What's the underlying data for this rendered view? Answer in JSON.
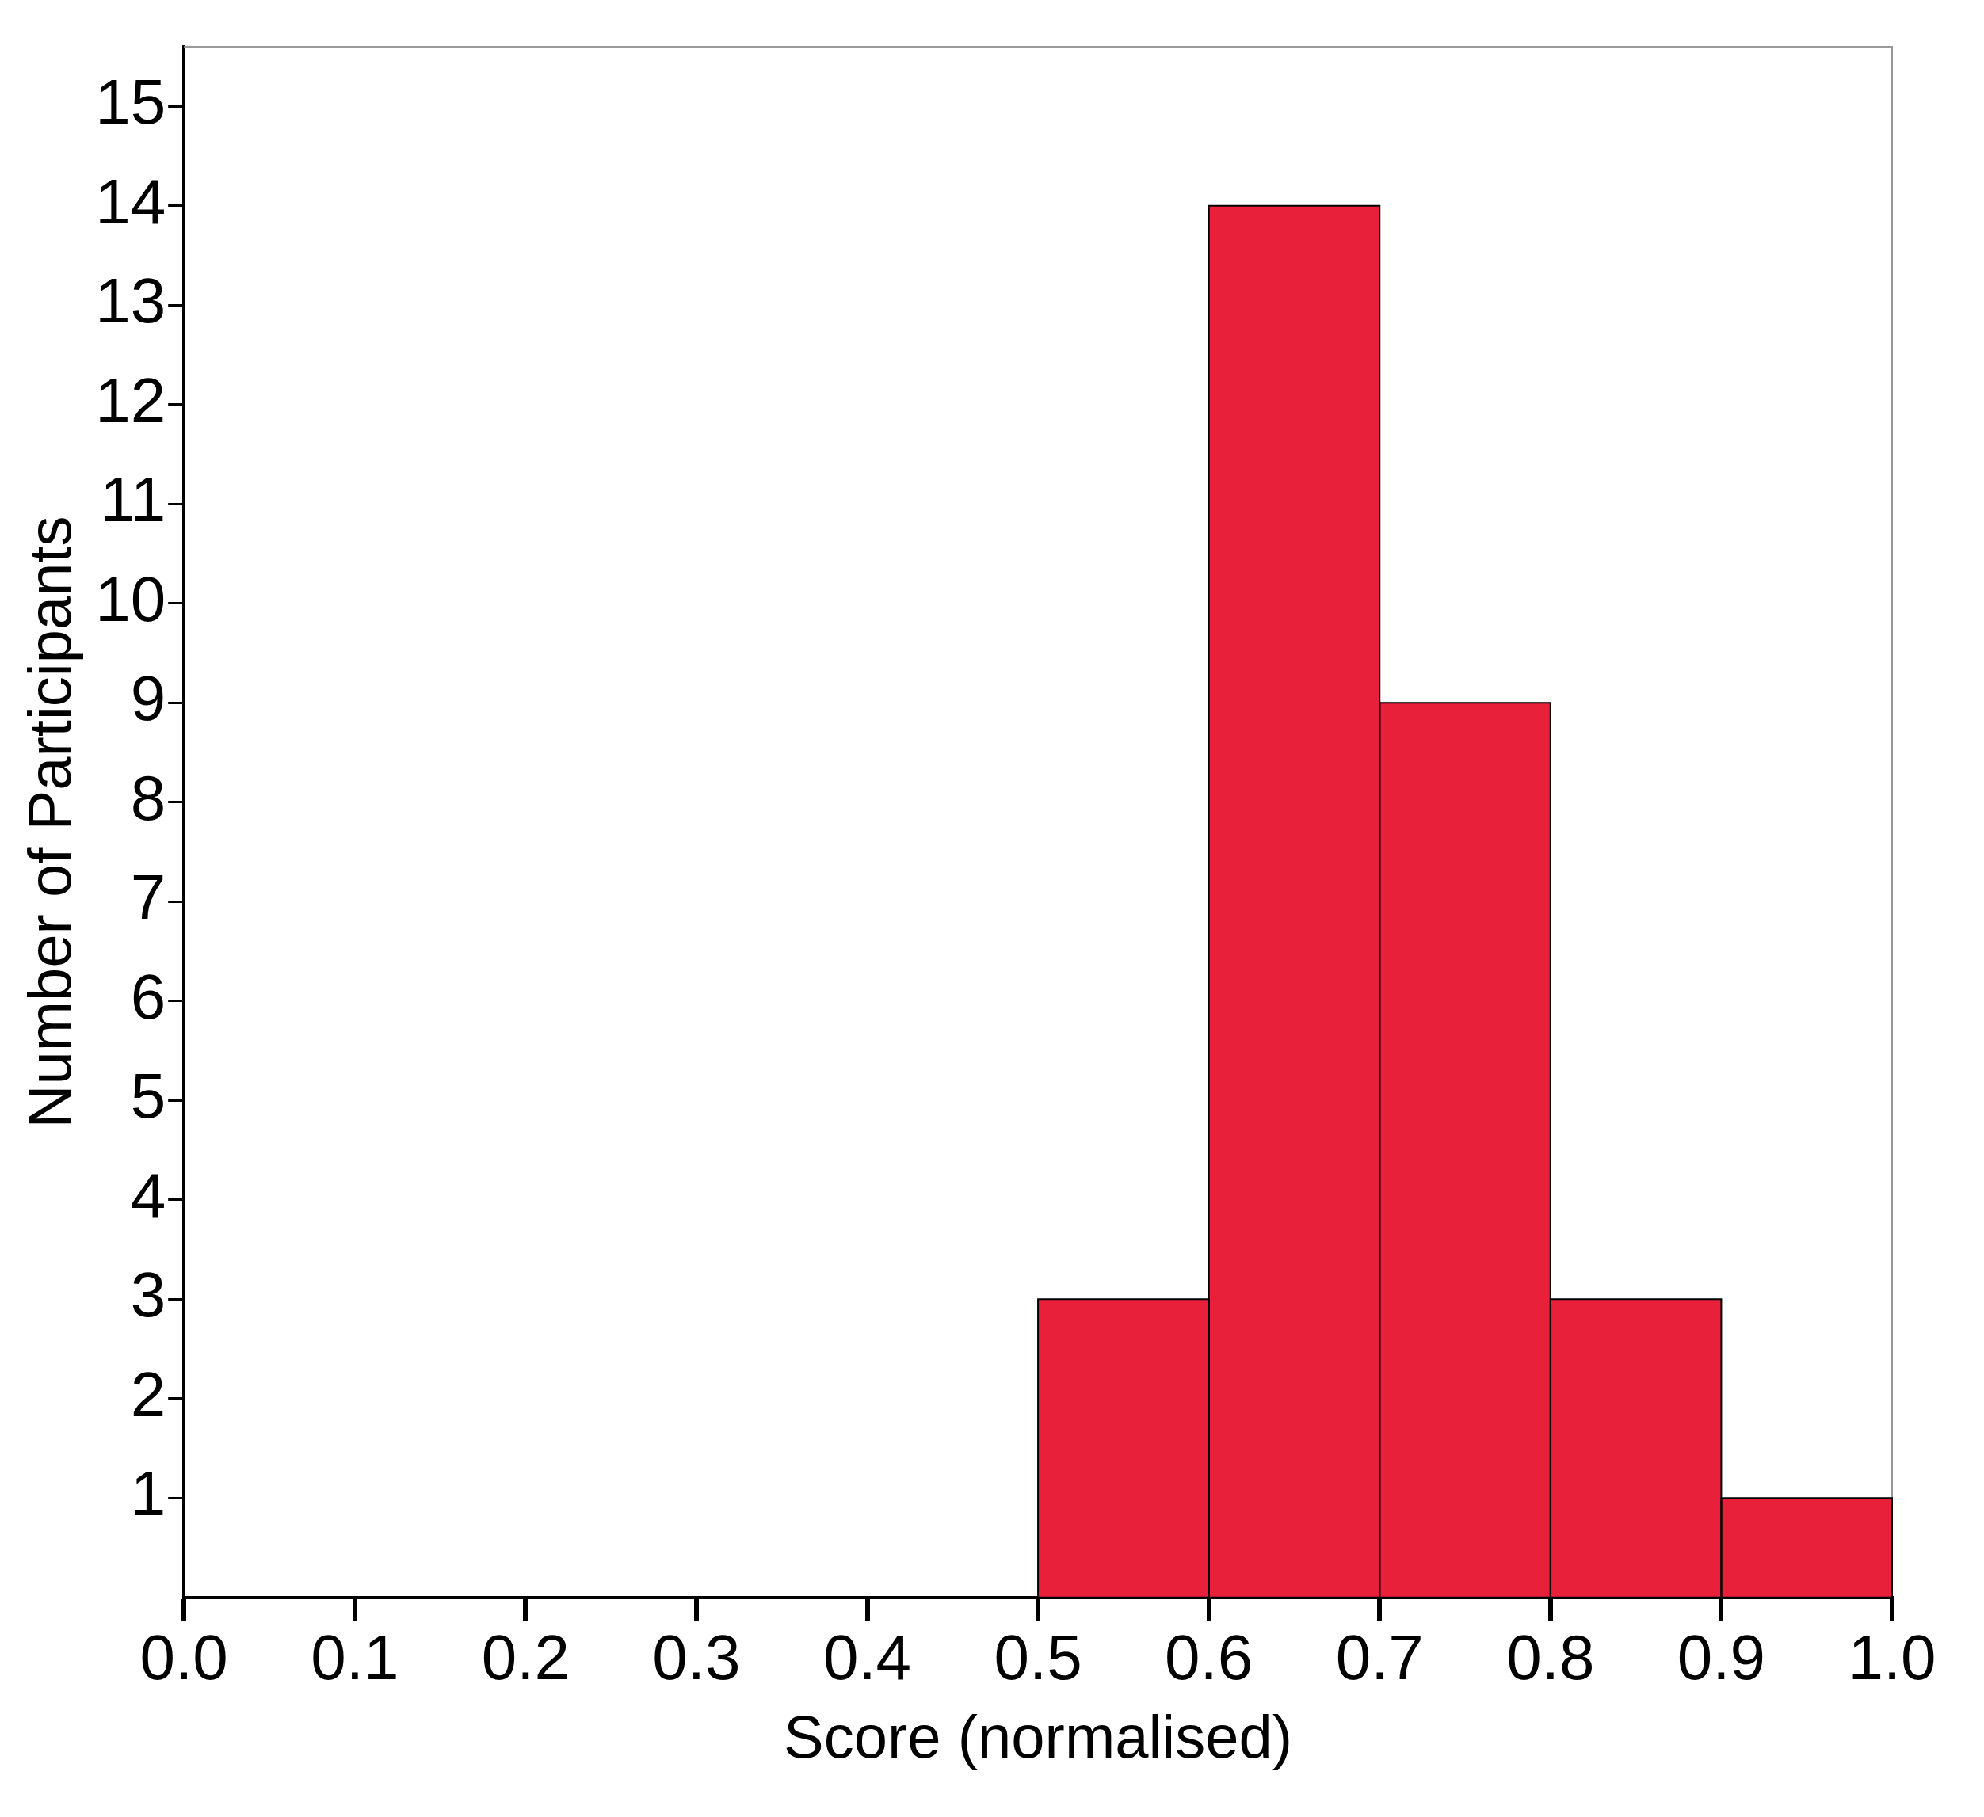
{
  "chart_data": {
    "type": "histogram",
    "xlabel": "Score (normalised)",
    "ylabel": "Number of Participants",
    "bins": [
      0.5,
      0.6,
      0.7,
      0.8,
      0.9,
      1.0
    ],
    "values": [
      3,
      14,
      9,
      3,
      1
    ],
    "color": "#e8203a",
    "xlim": [
      0,
      1
    ],
    "xticks": [
      {
        "value": 0,
        "label": "0.0"
      },
      0.1,
      0.2,
      0.3,
      0.4,
      0.5,
      0.6,
      0.7,
      0.8,
      0.9,
      {
        "value": 1,
        "label": "1.0"
      }
    ],
    "ylim": [
      0,
      15.6
    ],
    "yticks": [
      1,
      2,
      3,
      4,
      5,
      6,
      7,
      8,
      9,
      10,
      11,
      12,
      13,
      14,
      15
    ],
    "grid": false,
    "legend": false
  }
}
